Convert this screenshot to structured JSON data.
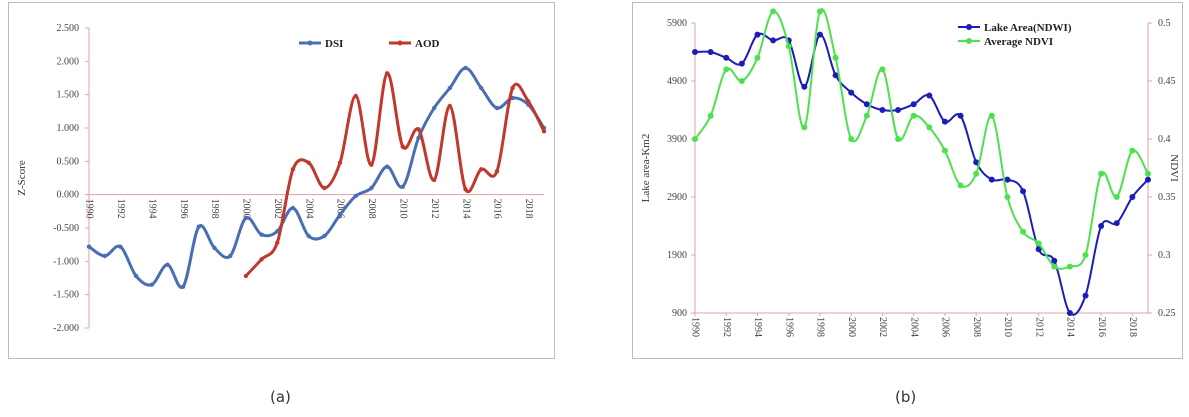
{
  "captions": {
    "a": "(a)",
    "b": "(b)"
  },
  "chart_data": [
    {
      "type": "line",
      "panel": "a",
      "ylabel": "Z-Score",
      "ylim": [
        -2.0,
        2.5
      ],
      "yticks": [
        "2.500",
        "2.000",
        "1.500",
        "1.000",
        "0.500",
        "0.000",
        "-0.500",
        "-1.000",
        "-1.500",
        "-2.000"
      ],
      "ytick_values": [
        2.5,
        2.0,
        1.5,
        1.0,
        0.5,
        0.0,
        -0.5,
        -1.0,
        -1.5,
        -2.0
      ],
      "xlim": [
        1990,
        2019
      ],
      "xticks": [
        "1990",
        "1992",
        "1994",
        "1996",
        "1998",
        "2000",
        "2002",
        "2004",
        "2006",
        "2008",
        "2010",
        "2012",
        "2014",
        "2016",
        "2018"
      ],
      "xtick_values": [
        1990,
        1992,
        1994,
        1996,
        1998,
        2000,
        2002,
        2004,
        2006,
        2008,
        2010,
        2012,
        2014,
        2016,
        2018
      ],
      "grid": false,
      "legend_position": "top-right",
      "series": [
        {
          "name": "DSI",
          "color": "#4a6eb5",
          "x": [
            1990,
            1991,
            1992,
            1993,
            1994,
            1995,
            1996,
            1997,
            1998,
            1999,
            2000,
            2001,
            2002,
            2003,
            2004,
            2005,
            2006,
            2007,
            2008,
            2009,
            2010,
            2011,
            2012,
            2013,
            2014,
            2015,
            2016,
            2017,
            2018,
            2019
          ],
          "values": [
            -0.78,
            -0.92,
            -0.78,
            -1.22,
            -1.35,
            -1.05,
            -1.38,
            -0.48,
            -0.8,
            -0.92,
            -0.35,
            -0.6,
            -0.55,
            -0.2,
            -0.62,
            -0.62,
            -0.3,
            -0.02,
            0.1,
            0.42,
            0.12,
            0.85,
            1.3,
            1.6,
            1.9,
            1.6,
            1.3,
            1.45,
            1.35,
            1.0
          ]
        },
        {
          "name": "AOD",
          "color": "#c0392b",
          "x": [
            2000,
            2001,
            2002,
            2003,
            2004,
            2005,
            2006,
            2007,
            2008,
            2009,
            2010,
            2011,
            2012,
            2013,
            2014,
            2015,
            2016,
            2017,
            2018,
            2019
          ],
          "values": [
            -1.22,
            -0.97,
            -0.72,
            0.38,
            0.48,
            0.1,
            0.48,
            1.48,
            0.45,
            1.82,
            0.72,
            0.98,
            0.22,
            1.33,
            0.08,
            0.38,
            0.35,
            1.6,
            1.4,
            0.95
          ]
        }
      ]
    },
    {
      "type": "line",
      "panel": "b",
      "ylabel": "Lake area-Km2",
      "ylabel_right": "NDVI",
      "ylim": [
        900,
        5900
      ],
      "yticks": [
        "5900",
        "4900",
        "3900",
        "2900",
        "1900",
        "900"
      ],
      "ytick_values": [
        5900,
        4900,
        3900,
        2900,
        1900,
        900
      ],
      "ylim_right": [
        0.25,
        0.5
      ],
      "yticks_right": [
        "0.5",
        "0.45",
        "0.4",
        "0.35",
        "0.3",
        "0.25"
      ],
      "ytick_values_right": [
        0.5,
        0.45,
        0.4,
        0.35,
        0.3,
        0.25
      ],
      "xlim": [
        1990,
        2019
      ],
      "xticks": [
        "1990",
        "1992",
        "1994",
        "1996",
        "1998",
        "2000",
        "2002",
        "2004",
        "2006",
        "2008",
        "2010",
        "2012",
        "2014",
        "2016",
        "2018"
      ],
      "xtick_values": [
        1990,
        1992,
        1994,
        1996,
        1998,
        2000,
        2002,
        2004,
        2006,
        2008,
        2010,
        2012,
        2014,
        2016,
        2018
      ],
      "grid": false,
      "legend_position": "top-right",
      "series": [
        {
          "name": "Lake Area(NDWI)",
          "color": "#1c1cb8",
          "axis": "left",
          "x": [
            1990,
            1991,
            1992,
            1993,
            1994,
            1995,
            1996,
            1997,
            1998,
            1999,
            2000,
            2001,
            2002,
            2003,
            2004,
            2005,
            2006,
            2007,
            2008,
            2009,
            2010,
            2011,
            2012,
            2013,
            2014,
            2015,
            2016,
            2017,
            2018,
            2019
          ],
          "values": [
            5400,
            5400,
            5300,
            5200,
            5700,
            5600,
            5600,
            4800,
            5700,
            5000,
            4700,
            4500,
            4400,
            4400,
            4500,
            4650,
            4200,
            4300,
            3500,
            3200,
            3200,
            3000,
            2000,
            1800,
            900,
            1200,
            2400,
            2450,
            2900,
            3200
          ]
        },
        {
          "name": "Average NDVI",
          "color": "#4ee14e",
          "axis": "right",
          "x": [
            1990,
            1991,
            1992,
            1993,
            1994,
            1995,
            1996,
            1997,
            1998,
            1999,
            2000,
            2001,
            2002,
            2003,
            2004,
            2005,
            2006,
            2007,
            2008,
            2009,
            2010,
            2011,
            2012,
            2013,
            2014,
            2015,
            2016,
            2017,
            2018,
            2019
          ],
          "values": [
            0.4,
            0.42,
            0.46,
            0.45,
            0.47,
            0.51,
            0.48,
            0.41,
            0.51,
            0.47,
            0.4,
            0.42,
            0.46,
            0.4,
            0.42,
            0.41,
            0.39,
            0.36,
            0.37,
            0.42,
            0.35,
            0.32,
            0.31,
            0.29,
            0.29,
            0.3,
            0.37,
            0.35,
            0.39,
            0.37
          ]
        }
      ]
    }
  ]
}
